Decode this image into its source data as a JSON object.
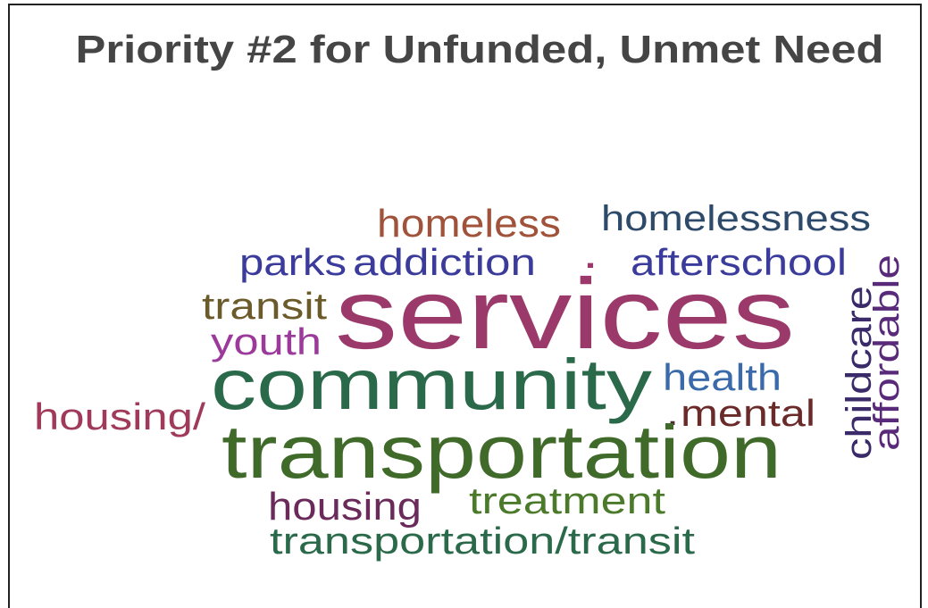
{
  "title": "Priority #2 for Unfunded, Unmet Need",
  "words": [
    {
      "text": "homeless",
      "color": "#a0523a"
    },
    {
      "text": "homelessness",
      "color": "#2e4a6b"
    },
    {
      "text": "parks",
      "color": "#3b3b9c"
    },
    {
      "text": "addiction",
      "color": "#3b3b9c"
    },
    {
      "text": ".",
      "color": "#9b3a6a"
    },
    {
      "text": "afterschool",
      "color": "#3b3b9c"
    },
    {
      "text": "transit",
      "color": "#6b5a2a"
    },
    {
      "text": "services",
      "color": "#9b3a6a"
    },
    {
      "text": "youth",
      "color": "#9b3a9b"
    },
    {
      "text": "childcare",
      "color": "#3a2a6a"
    },
    {
      "text": "affordable",
      "color": "#5a2a7a"
    },
    {
      "text": "community",
      "color": "#2a6a4a"
    },
    {
      "text": "health",
      "color": "#3a6aaa"
    },
    {
      "text": "housing/",
      "color": "#a03a5a"
    },
    {
      "text": ".",
      "color": "#4a2a2a"
    },
    {
      "text": "mental",
      "color": "#6a2a2a"
    },
    {
      "text": "transportation",
      "color": "#3f6a2a"
    },
    {
      "text": "housing",
      "color": "#6a2a5a"
    },
    {
      "text": "treatment",
      "color": "#4a7a2a"
    },
    {
      "text": "transportation/transit",
      "color": "#2a6a4a"
    }
  ]
}
